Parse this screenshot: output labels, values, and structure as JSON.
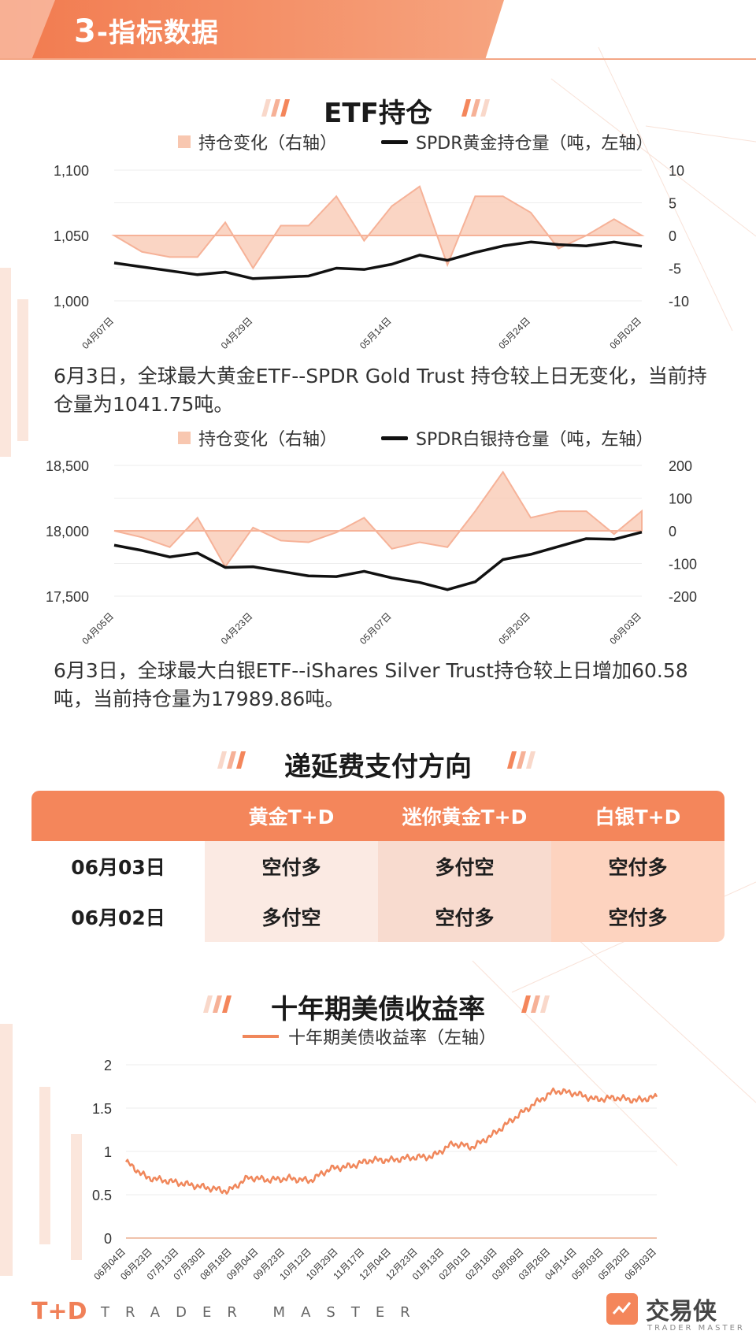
{
  "header": {
    "number": "3",
    "title": "-指标数据"
  },
  "etf": {
    "title": "ETF持仓",
    "gold_legend": {
      "bar": "持仓变化（右轴）",
      "line": "SPDR黄金持仓量（吨，左轴）"
    },
    "gold_note": "6月3日，全球最大黄金ETF--SPDR Gold Trust 持仓较上日无变化，当前持仓量为1041.75吨。",
    "silver_legend": {
      "bar": "持仓变化（右轴）",
      "line": "SPDR白银持仓量（吨，左轴）"
    },
    "silver_note": "6月3日，全球最大白银ETF--iShares Silver Trust持仓较上日增加60.58吨，当前持仓量为17989.86吨。"
  },
  "deferred": {
    "title": "递延费支付方向",
    "headers": [
      "",
      "黄金T+D",
      "迷你黄金T+D",
      "白银T+D"
    ],
    "rows": [
      {
        "date": "06月03日",
        "gold": "空付多",
        "mini": "多付空",
        "silver": "空付多"
      },
      {
        "date": "06月02日",
        "gold": "多付空",
        "mini": "空付多",
        "silver": "空付多"
      }
    ]
  },
  "treasury": {
    "title": "十年期美债收益率",
    "legend": "十年期美债收益率（左轴）"
  },
  "brand": {
    "left_logo": "T+D",
    "left_text": "TRADER MASTER",
    "right_logo": "交易侠",
    "right_sub": "TRADER MASTER"
  },
  "colors": {
    "accent": "#f4865b",
    "area": "#f8c7b0",
    "line": "#111111",
    "yield": "#f0875b"
  },
  "chart_data": [
    {
      "id": "gold",
      "type": "area+line",
      "title": "SPDR黄金持仓",
      "x_ticks": [
        "04月07日",
        "04月29日",
        "05月14日",
        "05月24日",
        "06月02日"
      ],
      "x_tick_index": [
        0,
        5,
        10,
        15,
        19
      ],
      "y_left": {
        "ticks": [
          "1,000",
          "1,050",
          "1,100"
        ],
        "range": [
          1000,
          1100
        ]
      },
      "y_right": {
        "ticks": [
          "-10",
          "-5",
          "0",
          "5",
          "10"
        ],
        "range": [
          -10,
          10
        ]
      },
      "series": [
        {
          "name": "SPDR黄金持仓量（吨，左轴）",
          "axis": "left",
          "values": [
            1029,
            1026,
            1023,
            1020,
            1022,
            1017,
            1018,
            1019,
            1025,
            1024,
            1028,
            1035,
            1031,
            1037,
            1042,
            1045,
            1043,
            1042,
            1045,
            1041.75
          ]
        },
        {
          "name": "持仓变化（右轴）",
          "axis": "right",
          "values": [
            0,
            -2.5,
            -3.3,
            -3.3,
            2,
            -5,
            1.5,
            1.5,
            6,
            -0.8,
            4.5,
            7.5,
            -4.5,
            6,
            6,
            3.5,
            -2,
            0,
            2.5,
            0
          ]
        }
      ]
    },
    {
      "id": "silver",
      "type": "area+line",
      "title": "SPDR白银持仓",
      "x_ticks": [
        "04月05日",
        "04月23日",
        "05月07日",
        "05月20日",
        "06月03日"
      ],
      "x_tick_index": [
        0,
        5,
        10,
        15,
        19
      ],
      "y_left": {
        "ticks": [
          "17,500",
          "18,000",
          "18,500"
        ],
        "range": [
          17500,
          18500
        ]
      },
      "y_right": {
        "ticks": [
          "-200",
          "-100",
          "0",
          "100",
          "200"
        ],
        "range": [
          -200,
          200
        ]
      },
      "series": [
        {
          "name": "SPDR白银持仓量（吨，左轴）",
          "axis": "left",
          "values": [
            17890,
            17850,
            17800,
            17830,
            17720,
            17725,
            17690,
            17655,
            17650,
            17690,
            17640,
            17605,
            17550,
            17610,
            17780,
            17820,
            17880,
            17940,
            17935,
            17989.86
          ]
        },
        {
          "name": "持仓变化（右轴）",
          "axis": "right",
          "values": [
            0,
            -20,
            -50,
            40,
            -110,
            10,
            -30,
            -35,
            -5,
            40,
            -55,
            -35,
            -50,
            60,
            180,
            40,
            60,
            60,
            -10,
            60.58
          ]
        }
      ]
    },
    {
      "id": "yield",
      "type": "line",
      "title": "十年期美债收益率",
      "x_ticks": [
        "06月04日",
        "06月23日",
        "07月13日",
        "07月30日",
        "08月18日",
        "09月04日",
        "09月23日",
        "10月12日",
        "10月29日",
        "11月17日",
        "12月04日",
        "12月23日",
        "01月13日",
        "02月01日",
        "02月18日",
        "03月09日",
        "03月26日",
        "04月14日",
        "05月03日",
        "05月20日",
        "06月03日"
      ],
      "y": {
        "ticks": [
          "0",
          "0.5",
          "1",
          "1.5",
          "2"
        ],
        "range": [
          0,
          2
        ]
      },
      "series": [
        {
          "name": "十年期美债收益率（左轴）",
          "values": [
            0.88,
            0.7,
            0.66,
            0.62,
            0.58,
            0.54,
            0.7,
            0.67,
            0.69,
            0.66,
            0.8,
            0.83,
            0.9,
            0.9,
            0.93,
            0.94,
            1.09,
            1.05,
            1.2,
            1.38,
            1.55,
            1.7,
            1.67,
            1.6,
            1.62,
            1.59,
            1.63
          ]
        }
      ]
    }
  ]
}
